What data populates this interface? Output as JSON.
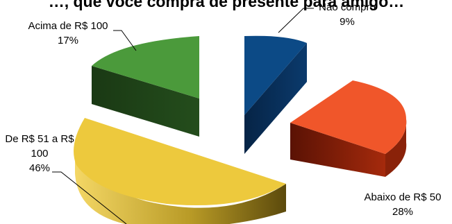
{
  "chart_data": {
    "type": "pie",
    "title": "…, que você compra de presente para amigo…",
    "exploded": true,
    "three_d": true,
    "legend": "none",
    "slices": [
      {
        "label": "Não compro",
        "pct_label": "9%",
        "value": 9,
        "color": "#0c4a86",
        "side_color": "#072b52"
      },
      {
        "label": "Abaixo de R$ 50",
        "pct_label": "28%",
        "value": 28,
        "color": "#f0562a",
        "side_color": "#7d1c07"
      },
      {
        "label": "De R$ 51 a R$ 100",
        "label_lines": [
          "De R$ 51 a R$",
          "100"
        ],
        "pct_label": "46%",
        "value": 46,
        "color": "#edc93d",
        "side_color": "#9b7d18"
      },
      {
        "label": "Acima de R$ 100",
        "pct_label": "17%",
        "value": 17,
        "color": "#4b9a3b",
        "side_color": "#1d3f16"
      }
    ]
  }
}
